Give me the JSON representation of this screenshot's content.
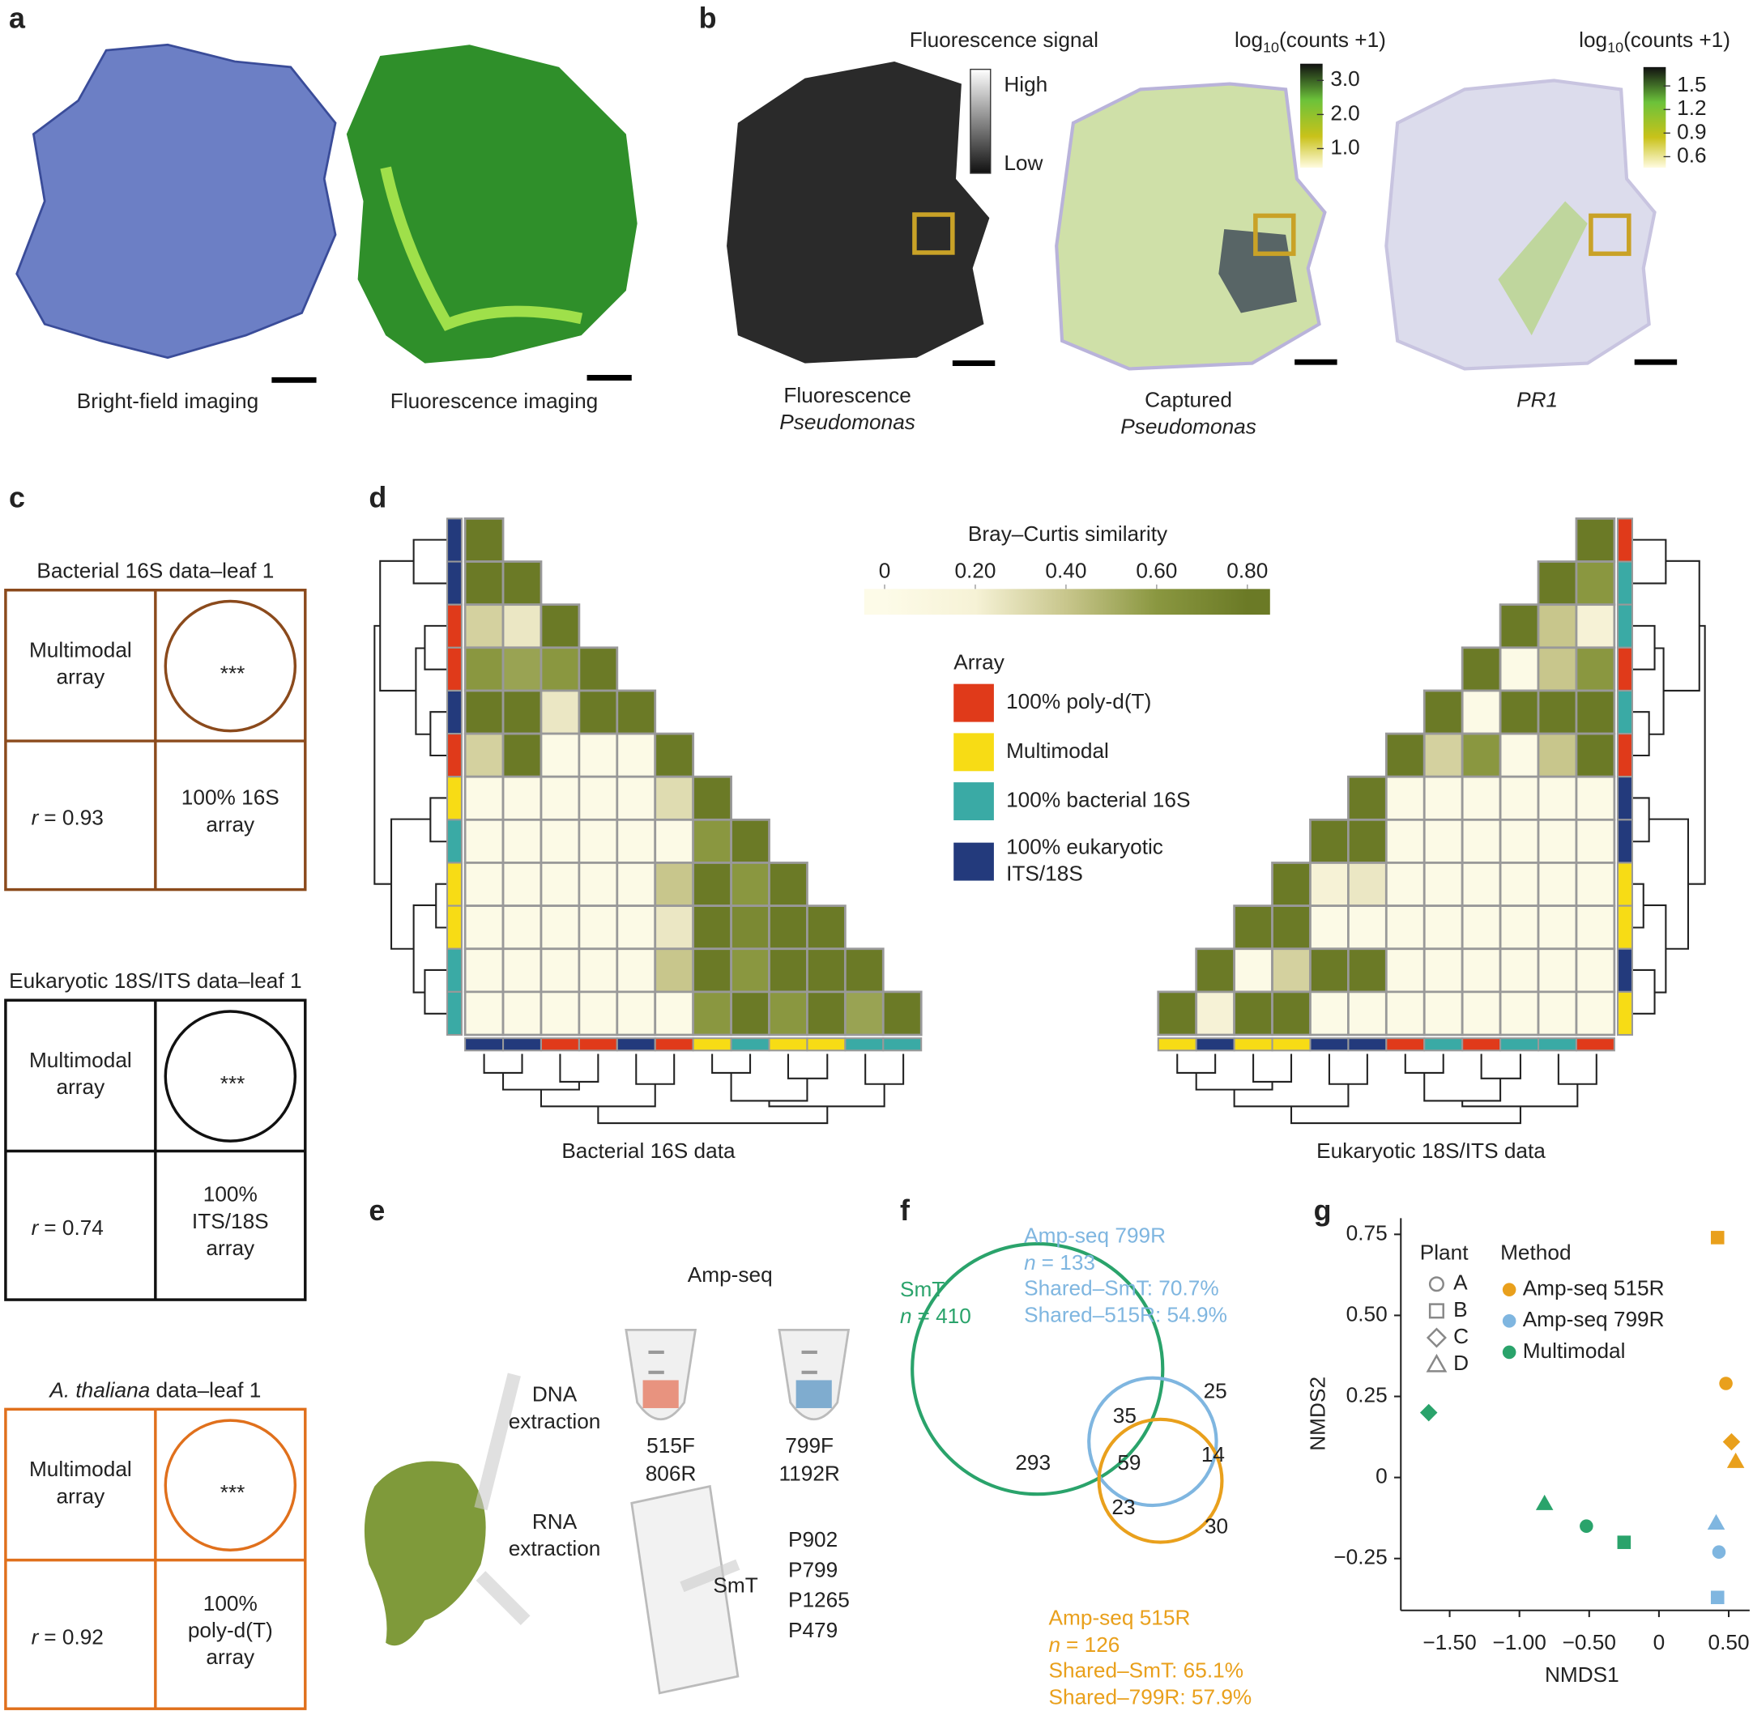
{
  "panel_labels": [
    "a",
    "b",
    "c",
    "d",
    "e",
    "f",
    "g"
  ],
  "a": {
    "captions": [
      "Bright-field imaging",
      "Fluorescence imaging"
    ]
  },
  "b": {
    "fluor_legend": {
      "title": "Fluorescence signal",
      "high": "High",
      "low": "Low"
    },
    "counts_legends": [
      {
        "title": {
          "base": "log",
          "sub": "10",
          "rest": "(counts +1)"
        },
        "lim": [
          0.44,
          3.49
        ],
        "ticks": [
          {
            "value": 3,
            "label": "3.0"
          },
          {
            "value": 2,
            "label": "2.0"
          },
          {
            "value": 1,
            "label": "1.0"
          }
        ]
      },
      {
        "title": {
          "base": "log",
          "sub": "10",
          "rest": "(counts +1)"
        },
        "lim": [
          0.46,
          1.74
        ],
        "ticks": [
          1.5,
          1.2,
          0.9,
          0.6
        ]
      }
    ],
    "captions": [
      [
        "Fluorescence",
        "Pseudomonas"
      ],
      [
        "Captured",
        "Pseudomonas"
      ],
      [
        "PR1"
      ]
    ]
  },
  "c": {
    "boxes": [
      {
        "title_italic": "",
        "title": "Bacterial 16S data–leaf 1",
        "row_label": [
          "Multimodal",
          "array"
        ],
        "stars": "***",
        "r_symbol": "r",
        "r_text": "= 0.93",
        "col_label": [
          "100% 16S",
          "array"
        ],
        "color": "#8b4a1c"
      },
      {
        "title_italic": "",
        "title": "Eukaryotic 18S/ITS data–leaf 1",
        "row_label": [
          "Multimodal",
          "array"
        ],
        "stars": "***",
        "r_symbol": "r",
        "r_text": "= 0.74",
        "col_label": [
          "100%",
          "ITS/18S",
          "array"
        ],
        "color": "#111111"
      },
      {
        "title_italic": "A. thaliana",
        "title": " data–leaf 1",
        "row_label": [
          "Multimodal",
          "array"
        ],
        "stars": "***",
        "r_symbol": "r",
        "r_text": "= 0.92",
        "col_label": [
          "100%",
          "poly-d(T)",
          "array"
        ],
        "color": "#e0701c"
      }
    ]
  },
  "d": {
    "colorbar": {
      "title": "Bray–Curtis similarity",
      "lim": [
        -0.045,
        0.85
      ],
      "ticks": [
        0,
        {
          "value": 0.2,
          "label": "0.20"
        },
        {
          "value": 0.4,
          "label": "0.40"
        },
        {
          "value": 0.6,
          "label": "0.60"
        },
        {
          "value": 0.8,
          "label": "0.80"
        }
      ],
      "stops": [
        [
          0,
          "#fdfbe8"
        ],
        [
          0.2,
          "#f6f2d6"
        ],
        [
          0.4,
          "#c8c68c"
        ],
        [
          0.6,
          "#8a9740"
        ],
        [
          0.8,
          "#6b7a26"
        ]
      ]
    },
    "legend": {
      "title": "Array",
      "items": [
        {
          "label": [
            "100% poly-d(T)"
          ],
          "color": "#e03a1a"
        },
        {
          "label": [
            "Multimodal"
          ],
          "color": "#f7dc15"
        },
        {
          "label": [
            "100% bacterial 16S"
          ],
          "color": "#3aaaa5"
        },
        {
          "label": [
            "100% eukaryotic",
            "ITS/18S"
          ],
          "color": "#233a7c"
        }
      ]
    },
    "heatmaps": [
      {
        "caption": "Bacterial 16S data",
        "side": "left",
        "values": [
          [
            0.8
          ],
          [
            0.8,
            0.8
          ],
          [
            0.35,
            0.25,
            0.8
          ],
          [
            0.6,
            0.55,
            0.6,
            0.8
          ],
          [
            0.8,
            0.8,
            0.25,
            0.8,
            0.8
          ],
          [
            0.35,
            0.8,
            0.02,
            0.02,
            0.02,
            0.8
          ],
          [
            0.02,
            0.02,
            0.02,
            0.02,
            0.02,
            0.3,
            0.8
          ],
          [
            0.02,
            0.02,
            0.02,
            0.02,
            0.02,
            0.02,
            0.6,
            0.8
          ],
          [
            0.02,
            0.02,
            0.02,
            0.02,
            0.02,
            0.4,
            0.8,
            0.6,
            0.8
          ],
          [
            0.02,
            0.02,
            0.02,
            0.02,
            0.02,
            0.25,
            0.8,
            0.7,
            0.8,
            0.8
          ],
          [
            0.02,
            0.02,
            0.02,
            0.02,
            0.02,
            0.4,
            0.8,
            0.6,
            0.8,
            0.8,
            0.8
          ],
          [
            0.02,
            0.02,
            0.02,
            0.02,
            0.02,
            0.02,
            0.6,
            0.8,
            0.6,
            0.8,
            0.55,
            0.8
          ]
        ],
        "row_colors": [
          "#233a7c",
          "#233a7c",
          "#e03a1a",
          "#e03a1a",
          "#233a7c",
          "#e03a1a",
          "#f7dc15",
          "#3aaaa5",
          "#f7dc15",
          "#f7dc15",
          "#3aaaa5",
          "#3aaaa5"
        ],
        "col_colors": [
          "#233a7c",
          "#233a7c",
          "#e03a1a",
          "#e03a1a",
          "#233a7c",
          "#e03a1a",
          "#f7dc15",
          "#3aaaa5",
          "#f7dc15",
          "#f7dc15",
          "#3aaaa5",
          "#3aaaa5"
        ]
      },
      {
        "caption": "Eukaryotic 18S/ITS data",
        "side": "right",
        "values": [
          [
            0.8
          ],
          [
            0.8,
            0.6
          ],
          [
            0.8,
            0.4,
            0.2
          ],
          [
            0.8,
            0.02,
            0.4,
            0.6
          ],
          [
            0.8,
            0.02,
            0.8,
            0.8,
            0.8
          ],
          [
            0.8,
            0.35,
            0.6,
            0.02,
            0.4,
            0.8
          ],
          [
            0.8,
            0.02,
            0.02,
            0.02,
            0.02,
            0.02,
            0.02
          ],
          [
            0.8,
            0.8,
            0.02,
            0.02,
            0.02,
            0.02,
            0.02,
            0.02
          ],
          [
            0.8,
            0.2,
            0.25,
            0.02,
            0.02,
            0.02,
            0.02,
            0.02,
            0.02
          ],
          [
            0.8,
            0.8,
            0.02,
            0.02,
            0.02,
            0.02,
            0.02,
            0.02,
            0.02,
            0.02
          ],
          [
            0.8,
            0.02,
            0.35,
            0.8,
            0.8,
            0.02,
            0.02,
            0.02,
            0.02,
            0.02,
            0.02
          ],
          [
            0.8,
            0.2,
            0.8,
            0.8,
            0.02,
            0.02,
            0.02,
            0.02,
            0.02,
            0.02,
            0.02,
            0.02
          ]
        ],
        "row_colors": [
          "#e03a1a",
          "#3aaaa5",
          "#3aaaa5",
          "#e03a1a",
          "#3aaaa5",
          "#e03a1a",
          "#233a7c",
          "#233a7c",
          "#f7dc15",
          "#f7dc15",
          "#233a7c",
          "#f7dc15"
        ],
        "col_colors": [
          "#f7dc15",
          "#233a7c",
          "#f7dc15",
          "#f7dc15",
          "#233a7c",
          "#233a7c",
          "#e03a1a",
          "#3aaaa5",
          "#e03a1a",
          "#3aaaa5",
          "#3aaaa5",
          "#e03a1a"
        ]
      }
    ]
  },
  "e": {
    "amp_title": "Amp-seq",
    "dna": [
      "DNA",
      "extraction"
    ],
    "rna": [
      "RNA",
      "extraction"
    ],
    "primers": [
      [
        "515F",
        "806R"
      ],
      [
        "799F",
        "1192R"
      ]
    ],
    "smt": "SmT",
    "probes": [
      "P902",
      "P799",
      "P1265",
      "P479"
    ]
  },
  "f": {
    "sets": [
      {
        "name": "SmT",
        "n_symbol": "n",
        "n_text": "= 410",
        "shared": [],
        "color": "#2aa36b"
      },
      {
        "name": "Amp-seq 799R",
        "n_symbol": "n",
        "n_text": "= 133",
        "shared": [
          "Shared–SmT: 70.7%",
          "Shared–515R: 54.9%"
        ],
        "color": "#7fb6e0"
      },
      {
        "name": "Amp-seq 515R",
        "n_symbol": "n",
        "n_text": "= 126",
        "shared": [
          "Shared–SmT: 65.1%",
          "Shared–799R: 57.9%"
        ],
        "color": "#e9a01c"
      }
    ],
    "regions": [
      293,
      35,
      59,
      23,
      25,
      14,
      30
    ]
  },
  "chart_data": {
    "type": "scatter",
    "xlabel": "NMDS1",
    "ylabel": "NMDS2",
    "xlim": [
      -1.85,
      0.65
    ],
    "ylim": [
      -0.41,
      0.8
    ],
    "xticks": [
      {
        "value": -1.5,
        "label": "−1.50"
      },
      {
        "value": -1,
        "label": "−1.00"
      },
      {
        "value": -0.5,
        "label": "−0.50"
      },
      0,
      {
        "value": 0.5,
        "label": "0.50"
      }
    ],
    "yticks": [
      {
        "value": -0.25,
        "label": "−0.25"
      },
      0,
      {
        "value": 0.25,
        "label": "0.25"
      },
      {
        "value": 0.5,
        "label": "0.50"
      },
      {
        "value": 0.75,
        "label": "0.75"
      }
    ],
    "legend_title": "Method",
    "marker_legend": {
      "title": "Plant",
      "items": [
        {
          "label": "A",
          "marker": "circle"
        },
        {
          "label": "B",
          "marker": "square"
        },
        {
          "label": "C",
          "marker": "diamond"
        },
        {
          "label": "D",
          "marker": "triangle"
        }
      ]
    },
    "series": [
      {
        "name": "Amp-seq 515R",
        "color": "#e9a01c",
        "x": [
          0.42,
          0.48,
          0.52,
          0.55
        ],
        "values": [
          0.74,
          0.29,
          0.11,
          0.05
        ],
        "plant": [
          "B",
          "A",
          "C",
          "D"
        ]
      },
      {
        "name": "Amp-seq 799R",
        "color": "#7fb6e0",
        "x": [
          0.41,
          0.43,
          0.42
        ],
        "values": [
          -0.14,
          -0.23,
          -0.37
        ],
        "plant": [
          "D",
          "A",
          "B"
        ]
      },
      {
        "name": "Multimodal",
        "color": "#2aa36b",
        "x": [
          -1.65,
          -0.82,
          -0.52,
          -0.25
        ],
        "values": [
          0.2,
          -0.08,
          -0.15,
          -0.2
        ],
        "plant": [
          "C",
          "D",
          "A",
          "B"
        ]
      }
    ]
  }
}
